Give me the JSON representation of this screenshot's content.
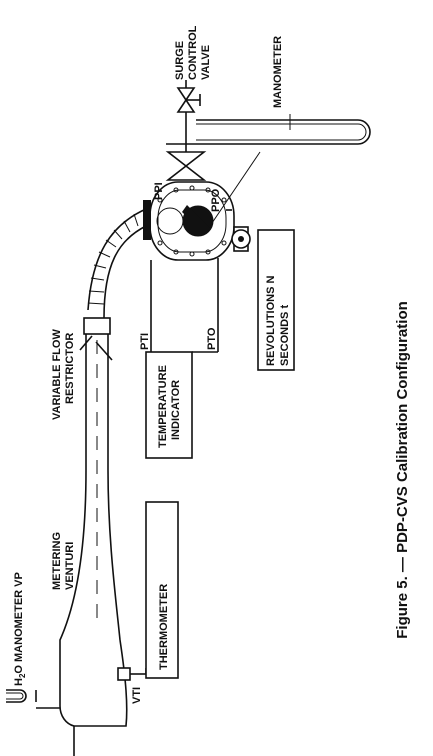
{
  "labels": {
    "surge_valve": [
      "SURGE",
      "CONTROL",
      "VALVE"
    ],
    "manometer": "MANOMETER",
    "ppi": "PPI",
    "ppo": "PPO",
    "variable_flow_restrictor": [
      "VARIABLE FLOW",
      "RESTRICTOR"
    ],
    "h2o_manometer_prefix": "H",
    "h2o_manometer_sub": "2",
    "h2o_manometer_suffix": "O MANOMETER VP",
    "metering_venturi": [
      "METERING",
      "VENTURI"
    ],
    "thermometer": "THERMOMETER",
    "temperature_indicator": [
      "TEMPERATURE",
      "INDICATOR"
    ],
    "pti": "PTI",
    "pto": "PTO",
    "revolutions": [
      "REVOLUTIONS N",
      "SECONDS t"
    ],
    "vti": "VTI"
  },
  "caption": "Figure 5. — PDP-CVS Calibration Configuration"
}
